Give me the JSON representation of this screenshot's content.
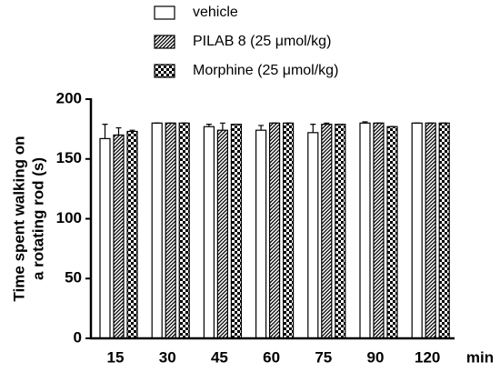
{
  "chart_data": {
    "type": "bar",
    "ylabel": [
      "Time spent walking on",
      "a rotating rod (s)"
    ],
    "xlabel": "min",
    "categories": [
      "15",
      "30",
      "45",
      "60",
      "75",
      "90",
      "120"
    ],
    "series": [
      {
        "name": "vehicle",
        "color": "#000000",
        "pattern": "none",
        "values": [
          167,
          180,
          177,
          174,
          172,
          180,
          180
        ],
        "errors": [
          12,
          0,
          2,
          4,
          7,
          1,
          0
        ]
      },
      {
        "name": "PILAB 8 (25 μmol/kg)",
        "color": "#000000",
        "pattern": "hatch",
        "values": [
          170,
          180,
          174,
          180,
          179,
          180,
          180
        ],
        "errors": [
          6,
          0,
          6,
          0,
          1,
          0,
          0
        ]
      },
      {
        "name": "Morphine (25 μmol/kg)",
        "color": "#000000",
        "pattern": "checker",
        "values": [
          173,
          180,
          179,
          180,
          179,
          177,
          180
        ],
        "errors": [
          1,
          0,
          0,
          0,
          0,
          0,
          0
        ]
      }
    ],
    "ylim": [
      0,
      200
    ],
    "yticks": [
      0,
      50,
      100,
      150,
      200
    ],
    "grid": false
  }
}
